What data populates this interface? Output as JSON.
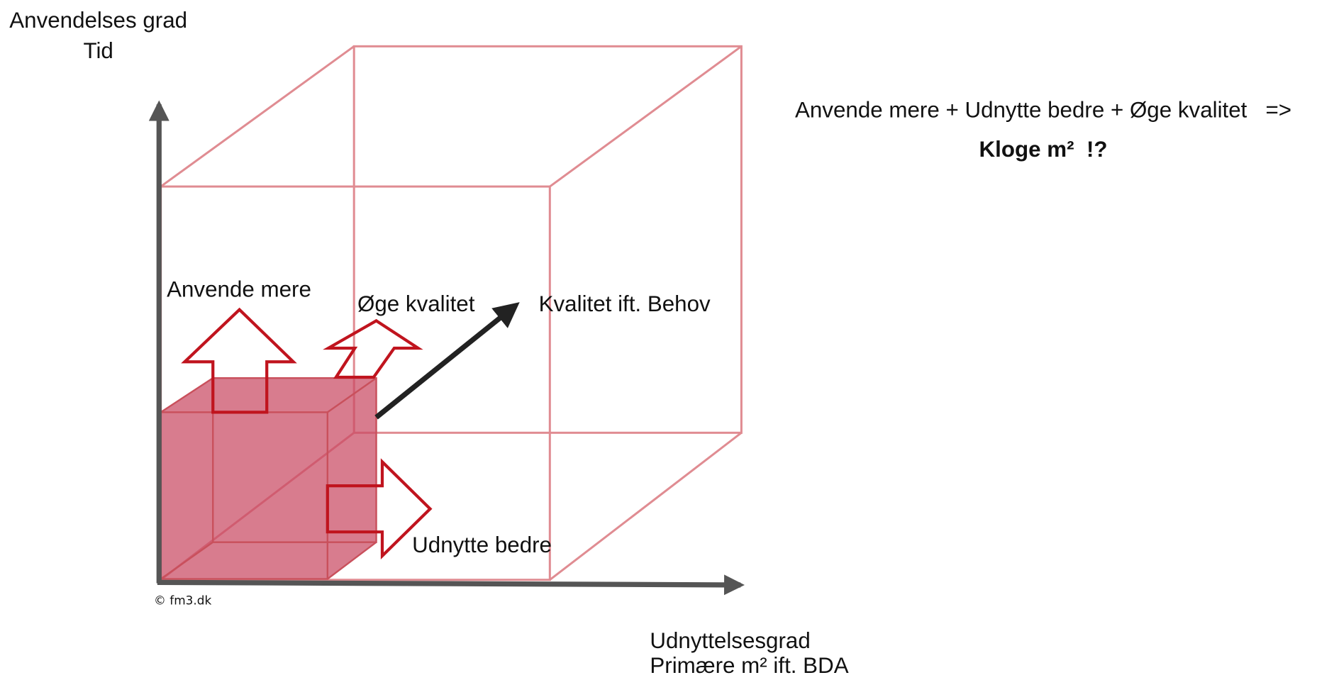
{
  "y_axis": {
    "label": "Anvendelses grad",
    "sublabel": "Tid"
  },
  "x_axis": {
    "label": "Udnyttelsesgrad",
    "sublabel": "Primære m² ift. BDA"
  },
  "z_axis": {
    "label": "Kvalitet ift. Behov"
  },
  "arrows": {
    "up": "Anvende mere",
    "diagonal": "Øge kvalitet",
    "right": "Udnytte bedre"
  },
  "formula": {
    "line1": "Anvende mere + Udnytte bedre + Øge kvalitet   =>",
    "line2": "Kloge m²  !?"
  },
  "copyright": "© fm3.dk"
}
